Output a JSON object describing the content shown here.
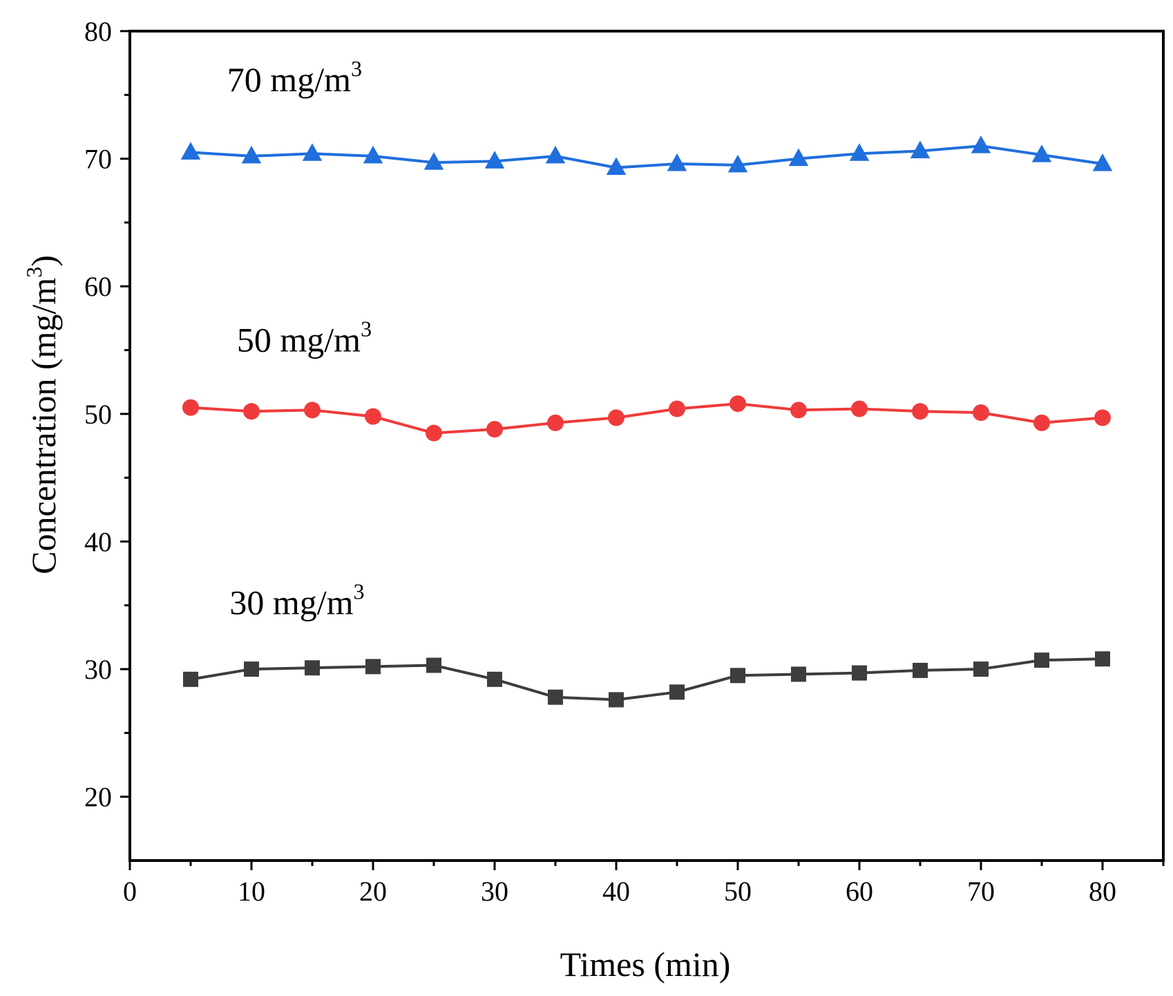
{
  "chart_data": {
    "type": "line",
    "title": "",
    "xlabel": "Times (min)",
    "ylabel_main": "Concentration (mg/m",
    "ylabel_sup": "3",
    "ylabel_end": ")",
    "xlim": [
      0,
      85
    ],
    "ylim": [
      15,
      80
    ],
    "xticks": [
      0,
      10,
      20,
      30,
      40,
      50,
      60,
      70,
      80
    ],
    "yticks": [
      20,
      30,
      40,
      50,
      60,
      70,
      80
    ],
    "x": [
      5,
      10,
      15,
      20,
      25,
      30,
      35,
      40,
      45,
      50,
      55,
      60,
      65,
      70,
      75,
      80
    ],
    "series": [
      {
        "name": "70 mg/m3",
        "label_main": "70 mg/m",
        "label_sup": "3",
        "label_pos": [
          8,
          75.3
        ],
        "color": "#1f6fdc",
        "marker": "triangle",
        "values": [
          70.5,
          70.2,
          70.4,
          70.2,
          69.7,
          69.8,
          70.2,
          69.3,
          69.6,
          69.5,
          70.0,
          70.4,
          70.6,
          71.0,
          70.3,
          69.6
        ]
      },
      {
        "name": "50 mg/m3",
        "label_main": "50 mg/m",
        "label_sup": "3",
        "label_pos": [
          8.8,
          54.9
        ],
        "color": "#ef3b3b",
        "marker": "circle",
        "values": [
          50.5,
          50.2,
          50.3,
          49.8,
          48.5,
          48.8,
          49.3,
          49.7,
          50.4,
          50.8,
          50.3,
          50.4,
          50.2,
          50.1,
          49.3,
          49.7
        ]
      },
      {
        "name": "30 mg/m3",
        "label_main": "30 mg/m",
        "label_sup": "3",
        "label_pos": [
          8.2,
          34.3
        ],
        "color": "#3d3d3d",
        "marker": "square",
        "values": [
          29.2,
          30.0,
          30.1,
          30.2,
          30.3,
          29.2,
          27.8,
          27.6,
          28.2,
          29.5,
          29.6,
          29.7,
          29.9,
          30.0,
          30.7,
          30.8
        ]
      }
    ],
    "grid": false,
    "legend": "none"
  }
}
